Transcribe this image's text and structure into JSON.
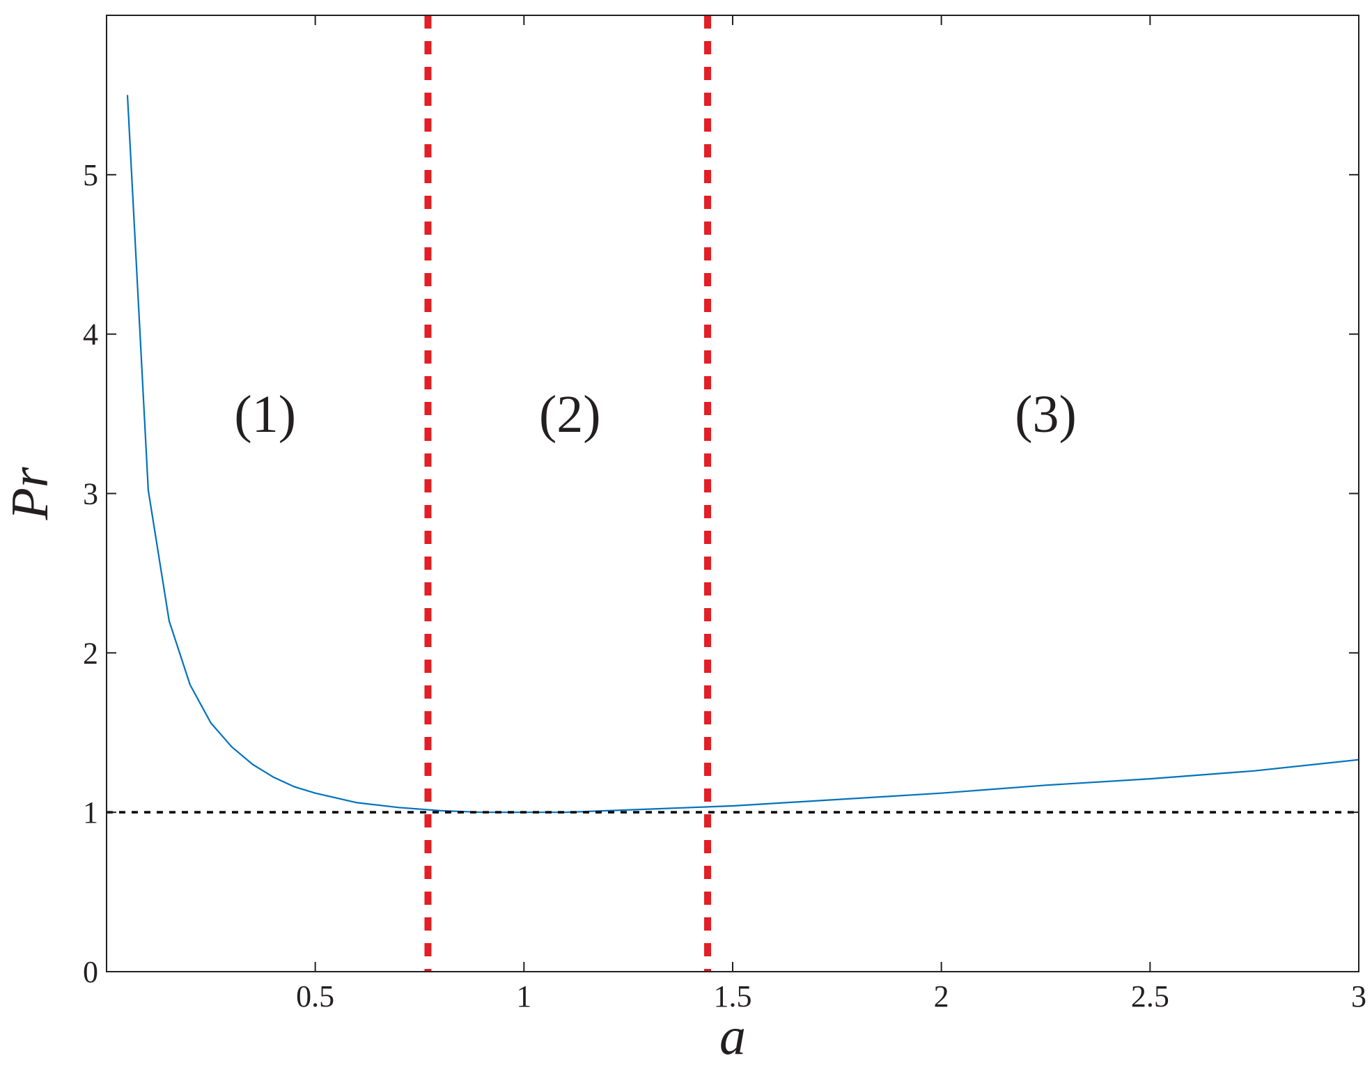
{
  "chart_data": {
    "type": "line",
    "xlabel": "a",
    "ylabel": "Pr",
    "xlim": [
      0,
      3
    ],
    "ylim": [
      0,
      6
    ],
    "x_ticks": [
      0.5,
      1,
      1.5,
      2,
      2.5,
      3
    ],
    "x_tick_labels": [
      "0.5",
      "1",
      "1.5",
      "2",
      "2.5",
      "3"
    ],
    "y_ticks": [
      0,
      1,
      2,
      3,
      4,
      5
    ],
    "y_tick_labels": [
      "0",
      "1",
      "2",
      "3",
      "4",
      "5"
    ],
    "grid": false,
    "series": [
      {
        "color": "#0072bd",
        "line_style": "solid",
        "x": [
          0.05,
          0.1,
          0.15,
          0.2,
          0.25,
          0.3,
          0.35,
          0.4,
          0.45,
          0.5,
          0.6,
          0.7,
          0.8,
          0.9,
          1.0,
          1.1,
          1.2,
          1.3,
          1.4,
          1.5,
          1.75,
          2.0,
          2.25,
          2.5,
          2.75,
          3.0
        ],
        "y": [
          5.5,
          3.02,
          2.2,
          1.8,
          1.56,
          1.41,
          1.3,
          1.22,
          1.16,
          1.12,
          1.06,
          1.03,
          1.01,
          1.0,
          1.0,
          1.0,
          1.01,
          1.02,
          1.03,
          1.04,
          1.08,
          1.12,
          1.17,
          1.21,
          1.26,
          1.33
        ]
      }
    ],
    "reference_lines": [
      {
        "orientation": "horizontal",
        "value": 1,
        "color": "#000000",
        "line_style": "dotted"
      },
      {
        "orientation": "vertical",
        "value": 0.77,
        "color": "#e31e24",
        "line_style": "dashed"
      },
      {
        "orientation": "vertical",
        "value": 1.44,
        "color": "#e31e24",
        "line_style": "dashed"
      }
    ],
    "annotations": [
      {
        "text": "(1)",
        "x": 0.38,
        "y": 3.5
      },
      {
        "text": "(2)",
        "x": 1.11,
        "y": 3.5
      },
      {
        "text": "(3)",
        "x": 2.25,
        "y": 3.5
      }
    ]
  }
}
